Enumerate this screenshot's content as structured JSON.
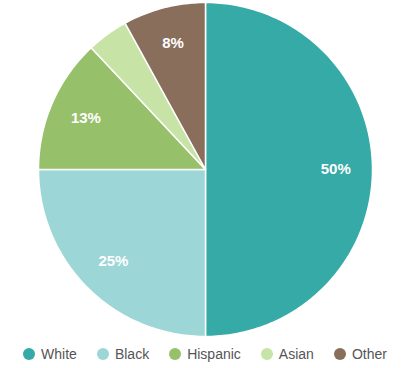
{
  "chart_data": {
    "type": "pie",
    "categories": [
      "White",
      "Black",
      "Hispanic",
      "Asian",
      "Other"
    ],
    "values": [
      50,
      25,
      13,
      4,
      8
    ],
    "value_labels": [
      "50%",
      "25%",
      "13%",
      null,
      "8%"
    ],
    "colors": [
      "#35aaa6",
      "#9dd6d6",
      "#97c06a",
      "#c7e3a5",
      "#8a6e5c"
    ],
    "data_labels": true,
    "legend": "bottom"
  }
}
